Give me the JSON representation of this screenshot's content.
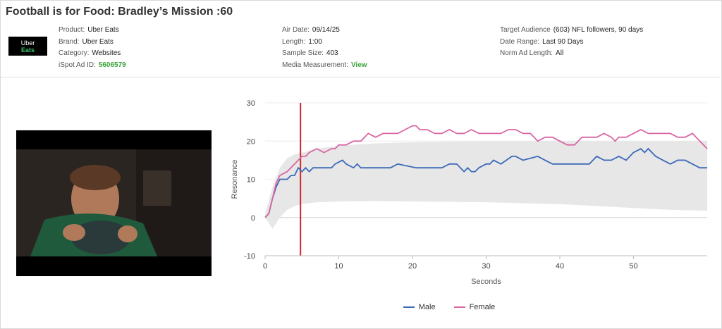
{
  "header": {
    "title": "Football is for Food: Bradley’s Mission :60"
  },
  "logo": {
    "line1": "Uber",
    "line2": "Eats"
  },
  "meta": {
    "col1": [
      {
        "key": "Product:",
        "value": "Uber Eats"
      },
      {
        "key": "Brand:",
        "value": "Uber Eats"
      },
      {
        "key": "Category:",
        "value": "Websites"
      },
      {
        "key": "iSpot Ad ID:",
        "value": "5606579",
        "link": true
      }
    ],
    "col2": [
      {
        "key": "Air Date:",
        "value": "09/14/25"
      },
      {
        "key": "Length:",
        "value": "1:00"
      },
      {
        "key": "Sample Size:",
        "value": "403"
      },
      {
        "key": "Media Measurement:",
        "value": "View",
        "link": true
      }
    ],
    "col3": [
      {
        "key": "Target Audience",
        "value": "(603) NFL followers, 90 days"
      },
      {
        "key": "Date Range:",
        "value": "Last 90 Days"
      },
      {
        "key": "Norm Ad Length:",
        "value": "All"
      }
    ]
  },
  "colors": {
    "male": "#3d6ab8",
    "female": "#d966a3",
    "band": "#e7e7e7",
    "marker": "#d42424",
    "link": "#3aa33a"
  },
  "chart_data": {
    "type": "line",
    "xlabel": "Seconds",
    "ylabel": "Resonance",
    "xlim": [
      0,
      60
    ],
    "ylim": [
      -10,
      30
    ],
    "xticks": [
      0,
      10,
      20,
      30,
      40,
      50
    ],
    "yticks": [
      -10,
      0,
      10,
      20,
      30
    ],
    "grid": true,
    "legend": "bottom",
    "marker_x": 4.8,
    "norm_band": {
      "x": [
        0,
        1,
        2,
        3,
        4,
        5,
        7,
        10,
        15,
        20,
        30,
        40,
        50,
        55,
        60
      ],
      "upper": [
        1,
        8,
        13,
        15.5,
        16.5,
        17,
        18,
        18.8,
        19.4,
        19.7,
        20,
        20,
        20,
        20,
        20
      ],
      "lower": [
        0,
        -3,
        0,
        2,
        3,
        3.5,
        4,
        4.2,
        4.3,
        4.2,
        4,
        3.5,
        2.5,
        2,
        1.8
      ]
    },
    "series": [
      {
        "name": "Male",
        "x": [
          0,
          0.5,
          1,
          1.5,
          2,
          3,
          3.5,
          4,
          4.5,
          5,
          5.5,
          6,
          6.5,
          7,
          9,
          9.5,
          10.5,
          11,
          12,
          12.5,
          13,
          14,
          17,
          18,
          20.5,
          21,
          24,
          25,
          26,
          27,
          27.5,
          28,
          28.5,
          29,
          30,
          30.5,
          31,
          32,
          33.5,
          34,
          35,
          37,
          38,
          39,
          44,
          45,
          46,
          47,
          48,
          49,
          49.5,
          50,
          51,
          51.5,
          52,
          53,
          54,
          55,
          56,
          57,
          58,
          59,
          60
        ],
        "values": [
          0,
          1,
          5,
          8,
          10,
          10,
          11,
          11,
          13,
          12,
          13,
          12,
          13,
          13,
          13,
          14,
          15,
          14,
          13,
          14,
          13,
          13,
          13,
          14,
          13,
          13,
          13,
          14,
          14,
          12,
          13,
          12,
          12,
          13,
          14,
          14,
          15,
          14,
          16,
          16,
          15,
          16,
          15,
          14,
          14,
          16,
          15,
          15,
          16,
          15,
          16,
          17,
          18,
          17,
          18,
          16,
          15,
          14,
          15,
          15,
          14,
          13,
          13
        ]
      },
      {
        "name": "Female",
        "x": [
          0,
          0.5,
          1,
          1.5,
          2,
          3,
          4,
          5,
          5.5,
          6,
          7,
          8,
          9,
          9.5,
          10,
          11,
          12,
          13,
          13.5,
          14,
          15,
          16,
          17,
          18,
          19,
          20,
          20.5,
          21,
          22,
          23,
          24,
          25,
          26,
          27,
          28,
          29,
          30,
          31,
          32,
          33,
          34,
          35,
          36,
          37,
          38,
          39,
          40,
          41,
          42,
          43,
          45,
          46,
          47,
          47.5,
          48,
          49,
          50,
          51,
          52,
          53,
          54,
          55,
          56,
          57,
          58,
          59,
          60
        ],
        "values": [
          0,
          1,
          5,
          9,
          11,
          12,
          14,
          16,
          16,
          17,
          18,
          17,
          18,
          18,
          19,
          19,
          20,
          20,
          21,
          22,
          21,
          22,
          22,
          22,
          23,
          24,
          24,
          23,
          23,
          22,
          22,
          23,
          22,
          22,
          23,
          22,
          22,
          22,
          22,
          23,
          23,
          22,
          22,
          20,
          21,
          21,
          20,
          19,
          19,
          21,
          21,
          22,
          21,
          20,
          21,
          21,
          22,
          23,
          22,
          22,
          22,
          22,
          21,
          21,
          22,
          20,
          18
        ]
      }
    ]
  }
}
